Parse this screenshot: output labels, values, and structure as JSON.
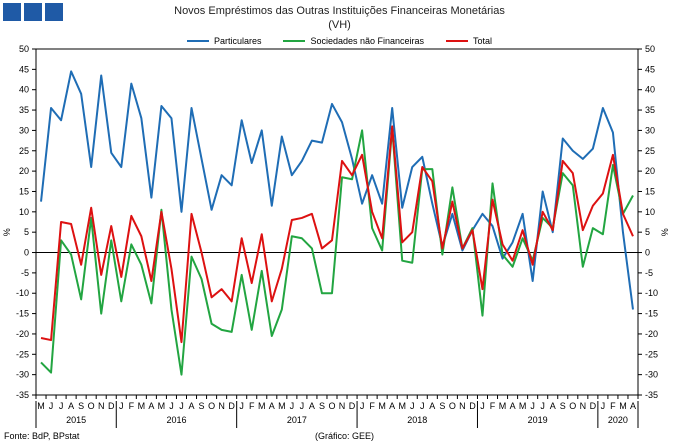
{
  "header": {
    "logo_name": "bportugal-logo"
  },
  "chart_data": {
    "type": "line",
    "title": "Novos Empréstimos das Outras Instituições Financeiras Monetárias",
    "subtitle": "(VH)",
    "ylabel_left": "%",
    "ylabel_right": "%",
    "ylim": [
      -35,
      50
    ],
    "yticks": [
      -35,
      -30,
      -25,
      -20,
      -15,
      -10,
      -5,
      0,
      5,
      10,
      15,
      20,
      25,
      30,
      35,
      40,
      45,
      50
    ],
    "grid": false,
    "legend_position": "top-center",
    "months": [
      "M",
      "J",
      "J",
      "A",
      "S",
      "O",
      "N",
      "D",
      "J",
      "F",
      "M",
      "A",
      "M",
      "J",
      "J",
      "A",
      "S",
      "O",
      "N",
      "D",
      "J",
      "F",
      "M",
      "A",
      "M",
      "J",
      "J",
      "A",
      "S",
      "O",
      "N",
      "D",
      "J",
      "F",
      "M",
      "A",
      "M",
      "J",
      "J",
      "A",
      "S",
      "O",
      "N",
      "D",
      "J",
      "F",
      "M",
      "A",
      "M",
      "J",
      "J",
      "A",
      "S",
      "O",
      "N",
      "D",
      "J",
      "F",
      "M",
      "A"
    ],
    "years": [
      {
        "label": "2015",
        "start": 0,
        "end": 7
      },
      {
        "label": "2016",
        "start": 8,
        "end": 19
      },
      {
        "label": "2017",
        "start": 20,
        "end": 31
      },
      {
        "label": "2018",
        "start": 32,
        "end": 43
      },
      {
        "label": "2019",
        "start": 44,
        "end": 55
      },
      {
        "label": "2020",
        "start": 56,
        "end": 59
      }
    ],
    "series": [
      {
        "name": "Particulares",
        "color": "#1f6db5",
        "values": [
          12.5,
          35.5,
          32.5,
          44.5,
          39,
          21,
          43.5,
          24.5,
          21,
          41.5,
          33,
          13.5,
          36,
          33,
          10,
          35.5,
          23,
          10.5,
          19,
          16.5,
          32.5,
          22,
          30,
          11.5,
          28.5,
          19,
          22.5,
          27.5,
          27,
          36.5,
          32,
          23,
          12,
          19,
          12,
          35.5,
          11,
          21,
          23.5,
          12,
          1.5,
          9.5,
          0.5,
          5.5,
          9.5,
          6.5,
          -1.5,
          2.5,
          9.5,
          -7,
          15,
          5,
          28,
          25,
          23,
          25.5,
          35.5,
          29.5,
          5,
          -14
        ]
      },
      {
        "name": "Sociedades não Financeiras",
        "color": "#22a541",
        "values": [
          -27,
          -29.5,
          3,
          -0.5,
          -11.5,
          8.5,
          -15,
          3,
          -12,
          2,
          -3,
          -12.5,
          10.5,
          -14,
          -30,
          -1,
          -6.5,
          -17.5,
          -19,
          -19.5,
          -5.5,
          -19,
          -4.5,
          -20.5,
          -14,
          4,
          3.5,
          1,
          -10,
          -10,
          18.5,
          18,
          30,
          6,
          0.5,
          30.5,
          -2,
          -2.5,
          20.5,
          20.5,
          -0.5,
          16,
          1,
          6,
          -15.5,
          17,
          -0.5,
          -3.5,
          3.5,
          -2,
          8.5,
          6,
          19.5,
          16.5,
          -3.5,
          6,
          4.5,
          21.5,
          9.5,
          14
        ]
      },
      {
        "name": "Total",
        "color": "#dd1111",
        "values": [
          -21,
          -21.5,
          7.5,
          7,
          -3,
          11,
          -5.5,
          6.5,
          -6,
          9,
          4,
          -7,
          10,
          -4,
          -22,
          9.5,
          0,
          -11,
          -9,
          -12,
          3.5,
          -7.5,
          4.5,
          -12,
          -4,
          8,
          8.5,
          9.5,
          1,
          3,
          22.5,
          19,
          24,
          10,
          3.5,
          31,
          2.5,
          5,
          21,
          17.5,
          1,
          12.5,
          1,
          5.5,
          -9,
          13,
          2,
          -2,
          5.5,
          -3,
          10,
          5.5,
          22.5,
          19.5,
          5.5,
          11.5,
          14.5,
          24,
          9.5,
          4
        ]
      }
    ]
  },
  "footer": {
    "source": "Fonte: BdP, BPstat",
    "credit": "(Gráfico: GEE)"
  }
}
